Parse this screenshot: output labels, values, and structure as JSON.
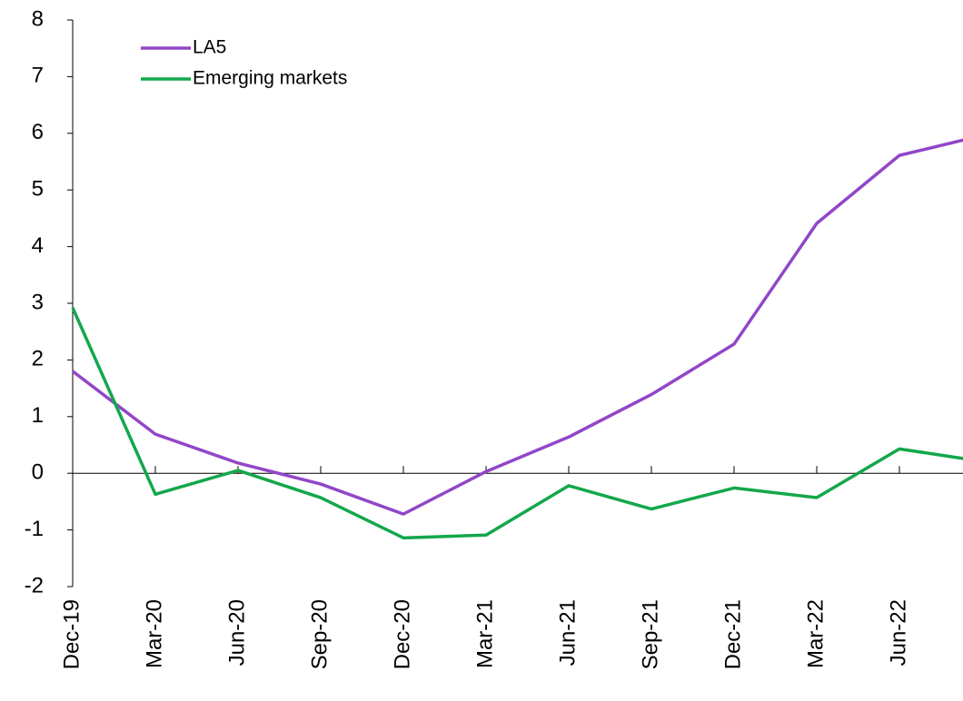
{
  "chart_data": {
    "type": "line",
    "categories": [
      "Dec-19",
      "Mar-20",
      "Jun-20",
      "Sep-20",
      "Dec-20",
      "Mar-21",
      "Jun-21",
      "Sep-21",
      "Dec-21",
      "Mar-22",
      "Jun-22",
      null
    ],
    "series": [
      {
        "name": "LA5",
        "color": "#9146c8",
        "values": [
          1.8,
          0.69,
          0.18,
          -0.19,
          -0.72,
          0.03,
          0.64,
          1.39,
          2.28,
          4.41,
          5.61,
          5.96
        ]
      },
      {
        "name": "Emerging markets",
        "color": "#13a74b",
        "values": [
          2.92,
          -0.37,
          0.05,
          -0.43,
          -1.14,
          -1.09,
          -0.22,
          -0.63,
          -0.26,
          -0.43,
          0.43,
          0.21
        ]
      }
    ],
    "ylim": [
      -2,
      8
    ],
    "yticks": [
      -2,
      -1,
      0,
      1,
      2,
      3,
      4,
      5,
      6,
      7,
      8
    ],
    "legend": "upper-left",
    "grid": false
  }
}
